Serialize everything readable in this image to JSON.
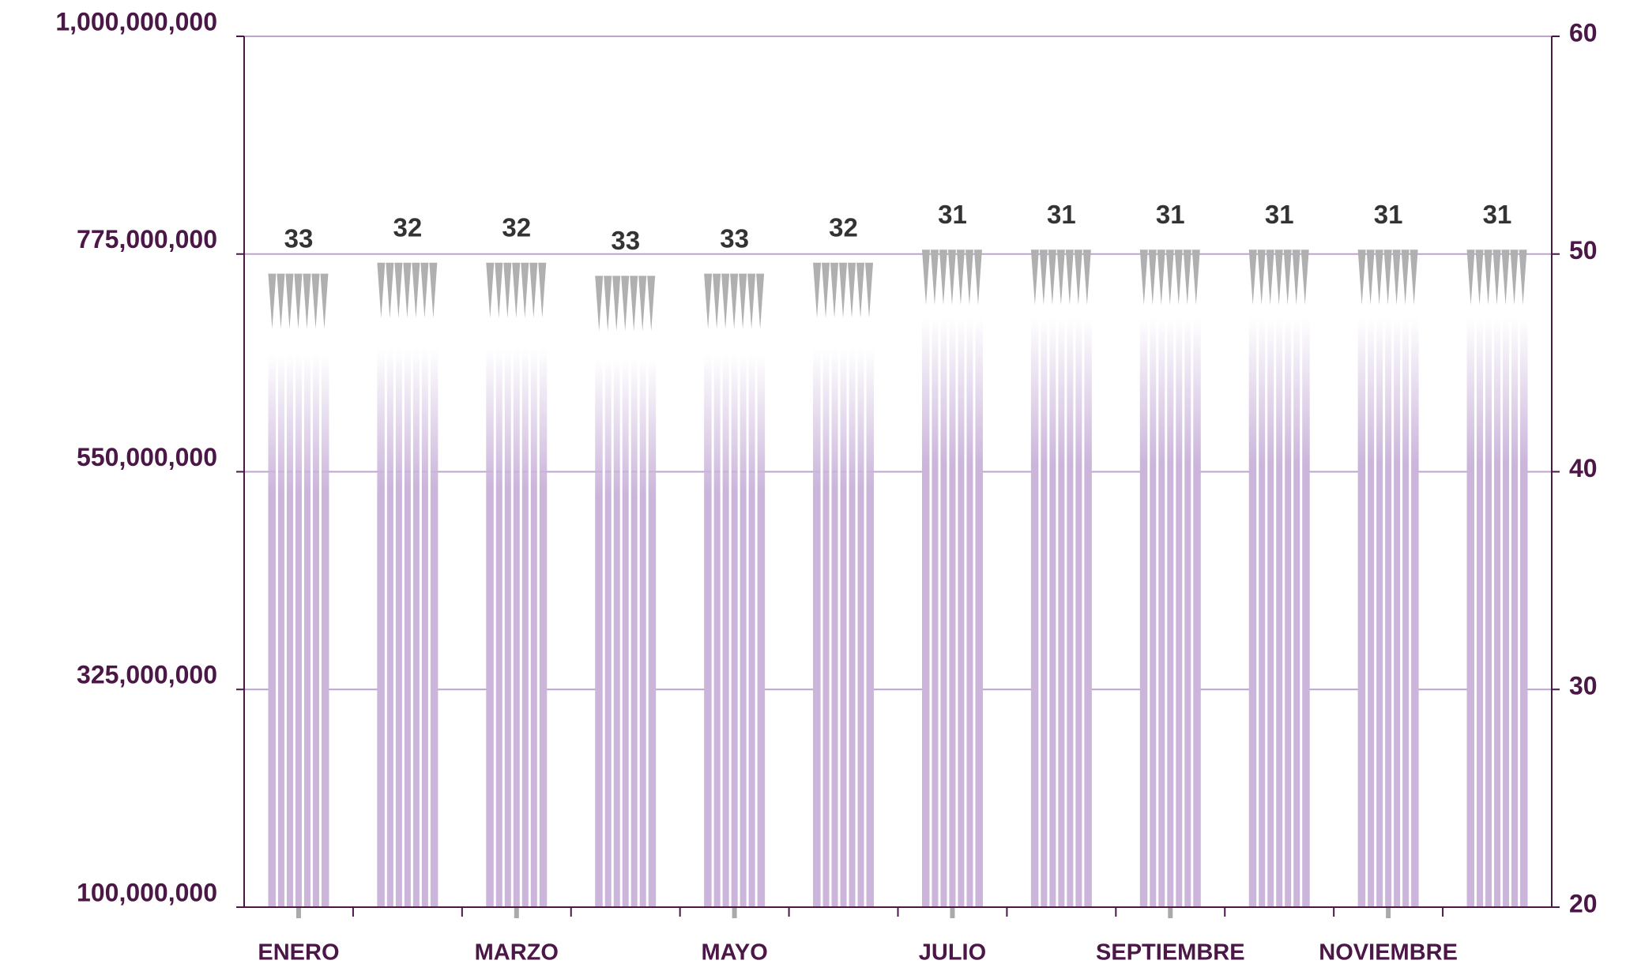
{
  "chart_data": {
    "type": "bar",
    "categories": [
      "ENERO",
      null,
      "MARZO",
      null,
      "MAYO",
      null,
      "JULIO",
      null,
      "SEPTIEMBRE",
      null,
      "NOVIEMBRE",
      null
    ],
    "series": [
      {
        "color": "#cbb5db",
        "values": [
          671000000,
          677000000,
          677000000,
          666000000,
          671000000,
          677000000,
          709000000,
          709000000,
          709000000,
          709000000,
          709000000,
          709000000
        ]
      },
      {
        "color": "#b0b0b0",
        "axis": "y2",
        "values": [
          49.1,
          49.6,
          49.6,
          49.0,
          49.1,
          49.6,
          50.2,
          50.2,
          50.2,
          50.2,
          50.2,
          50.2
        ]
      }
    ],
    "annotations": [
      "33",
      "32",
      "32",
      "33",
      "33",
      "32",
      "31",
      "31",
      "31",
      "31",
      "31",
      "31"
    ],
    "ylim": [
      100000000,
      1000000000
    ],
    "yticks": [
      {
        "value": 100000000,
        "label": "100,000,000"
      },
      {
        "value": 325000000,
        "label": "325,000,000"
      },
      {
        "value": 550000000,
        "label": "550,000,000"
      },
      {
        "value": 775000000,
        "label": "775,000,000"
      },
      {
        "value": 1000000000,
        "label": "1,000,000,000"
      }
    ],
    "y2lim": [
      20,
      60
    ],
    "y2ticks": [
      20,
      30,
      40,
      50,
      60
    ],
    "grid": true
  }
}
